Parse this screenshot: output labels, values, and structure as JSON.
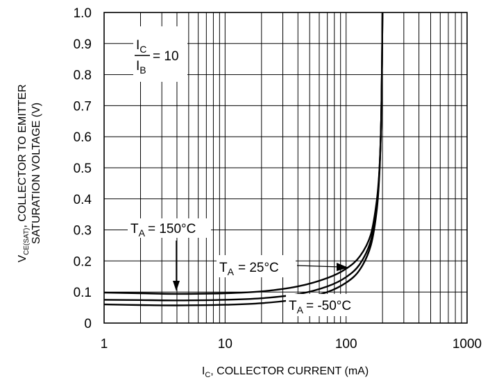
{
  "chart_data": {
    "type": "line",
    "x_scale": "log",
    "xlim": [
      1,
      1000
    ],
    "ylim": [
      0,
      1.0
    ],
    "grid": true,
    "x_ticks": [
      "1",
      "10",
      "100",
      "1000"
    ],
    "y_ticks": [
      "0",
      "0.1",
      "0.2",
      "0.3",
      "0.4",
      "0.5",
      "0.6",
      "0.7",
      "0.8",
      "0.9",
      "1.0"
    ],
    "xlabel": {
      "main": "I",
      "sub": "C",
      "rest": ", COLLECTOR CURRENT (mA)"
    },
    "ylabel": {
      "line1_main": "V",
      "line1_sub": "CE(SAT)",
      "line1_rest": ", COLLECTOR TO EMITTER",
      "line2": "SATURATION VOLTAGE (V)"
    },
    "ratio_annotation": {
      "num_main": "I",
      "num_sub": "C",
      "den_main": "I",
      "den_sub": "B",
      "rest": "= 10"
    },
    "series": [
      {
        "label_main": "T",
        "label_sub": "A",
        "label_rest": "= 150°C",
        "points": [
          [
            1,
            0.098
          ],
          [
            2,
            0.096
          ],
          [
            4,
            0.094
          ],
          [
            10,
            0.096
          ],
          [
            20,
            0.102
          ],
          [
            40,
            0.118
          ],
          [
            70,
            0.145
          ],
          [
            100,
            0.175
          ],
          [
            130,
            0.215
          ],
          [
            160,
            0.285
          ],
          [
            180,
            0.4
          ],
          [
            190,
            0.52
          ],
          [
            196,
            0.7
          ],
          [
            200,
            1.0
          ]
        ]
      },
      {
        "label_main": "T",
        "label_sub": "A",
        "label_rest": "= 25°C",
        "points": [
          [
            1,
            0.075
          ],
          [
            2,
            0.074
          ],
          [
            4,
            0.073
          ],
          [
            10,
            0.075
          ],
          [
            20,
            0.08
          ],
          [
            40,
            0.093
          ],
          [
            70,
            0.118
          ],
          [
            100,
            0.148
          ],
          [
            130,
            0.19
          ],
          [
            160,
            0.265
          ],
          [
            180,
            0.38
          ],
          [
            190,
            0.52
          ],
          [
            196,
            0.7
          ],
          [
            200,
            1.0
          ]
        ]
      },
      {
        "label_main": "T",
        "label_sub": "A",
        "label_rest": "= -50°C",
        "points": [
          [
            1,
            0.06
          ],
          [
            2,
            0.058
          ],
          [
            4,
            0.057
          ],
          [
            10,
            0.059
          ],
          [
            20,
            0.064
          ],
          [
            40,
            0.077
          ],
          [
            70,
            0.1
          ],
          [
            100,
            0.13
          ],
          [
            130,
            0.172
          ],
          [
            160,
            0.25
          ],
          [
            180,
            0.37
          ],
          [
            190,
            0.51
          ],
          [
            196,
            0.7
          ],
          [
            200,
            1.0
          ]
        ]
      }
    ]
  }
}
